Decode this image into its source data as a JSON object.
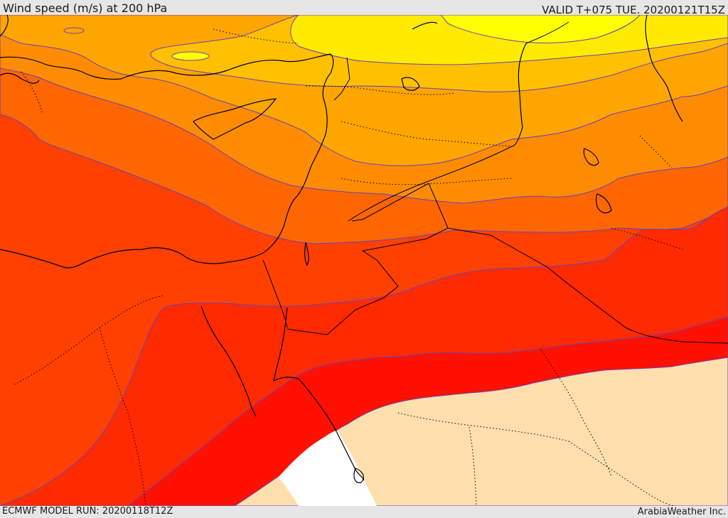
{
  "header": {
    "title": "Wind speed (m/s) at 200 hPa",
    "valid": "VALID T+075 TUE. 20200121T15Z"
  },
  "footer": {
    "model_run": "ECMWF MODEL RUN: 20200118T12Z",
    "provider": "ArabiaWeather Inc."
  },
  "map": {
    "variable": "wind speed",
    "level": "200 hPa",
    "units": "m/s",
    "band_colors": [
      "#ffff00",
      "#ffea00",
      "#ffc000",
      "#ffa500",
      "#ff8c00",
      "#ff6600",
      "#ff4000",
      "#ff2a00",
      "#ff1000",
      "#ffdfad",
      "#ffffff"
    ],
    "contour_color": "#6a40b8",
    "border_style": "dotted",
    "coastline_color": "#000000"
  }
}
